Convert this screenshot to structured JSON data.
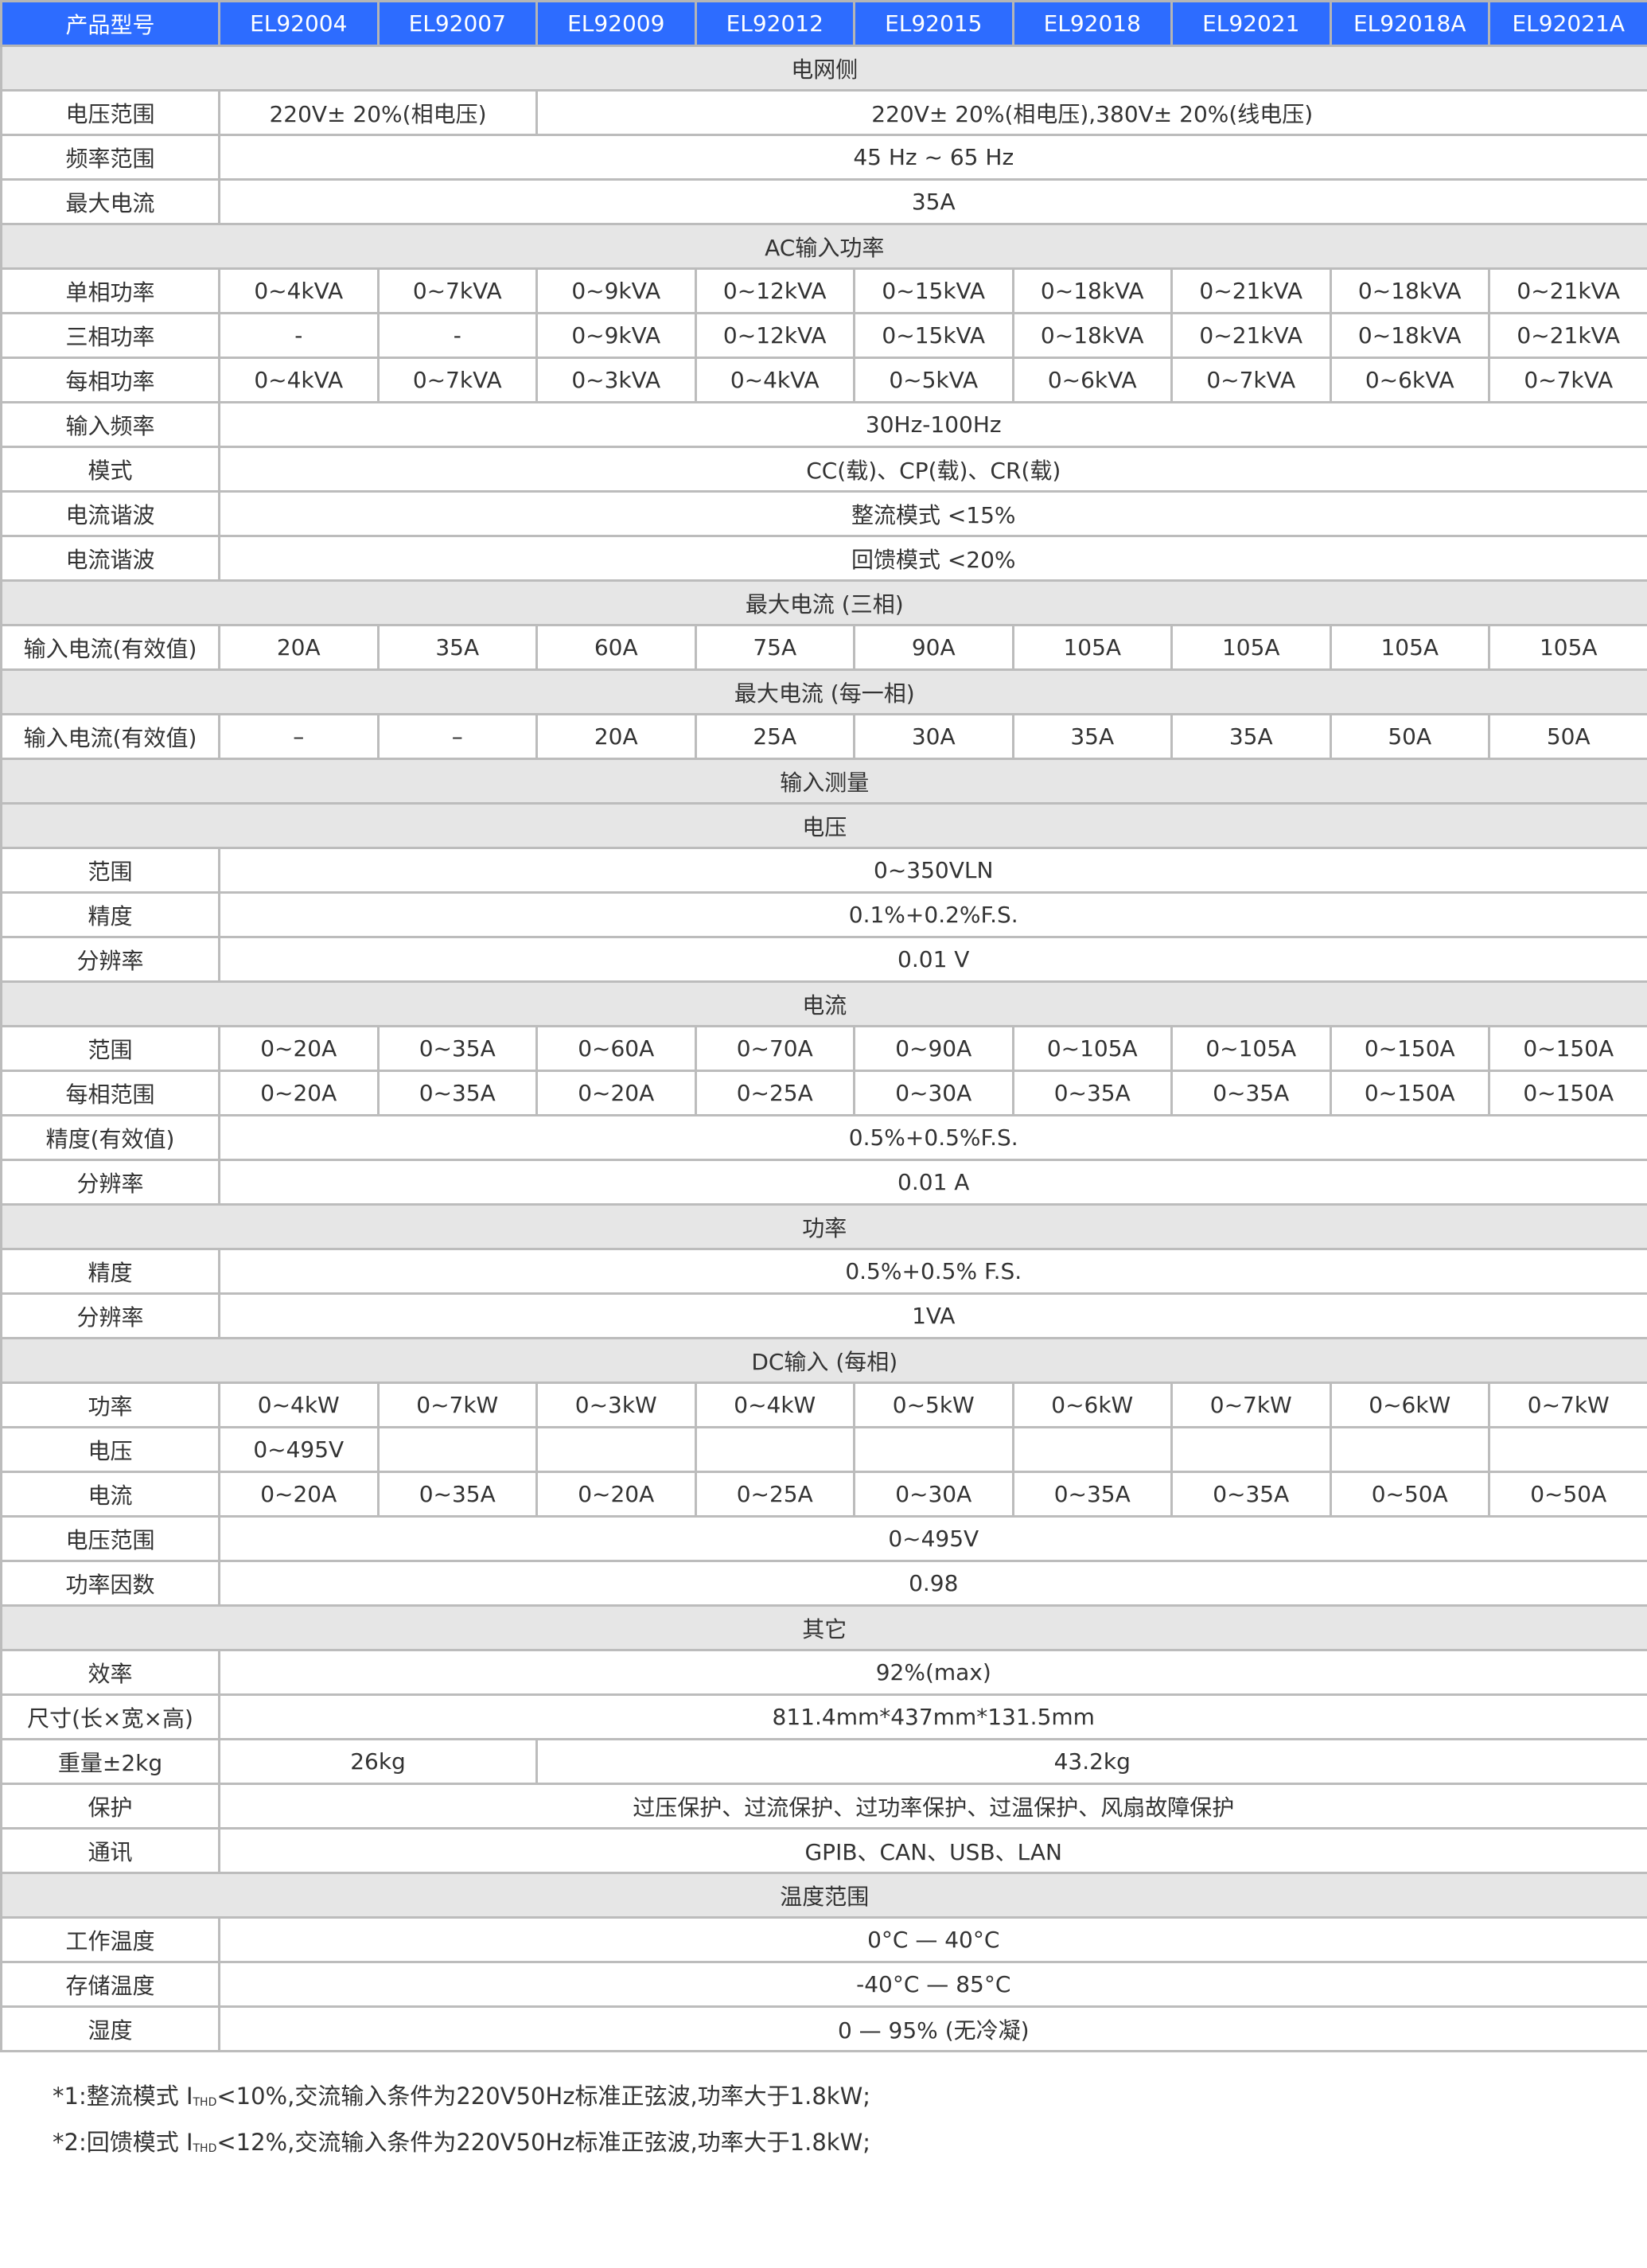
{
  "header": [
    "产品型号",
    "EL92004",
    "EL92007",
    "EL92009",
    "EL92012",
    "EL92015",
    "EL92018",
    "EL92021",
    "EL92018A",
    "EL92021A"
  ],
  "rows": [
    {
      "section": "电网侧"
    },
    {
      "label": "电压范围",
      "cells": [
        {
          "t": "220V± 20%(相电压)",
          "s": 2
        },
        {
          "t": "220V± 20%(相电压),380V± 20%(线电压)",
          "s": 7
        }
      ]
    },
    {
      "label": "频率范围",
      "cells": [
        {
          "t": "45 Hz ~ 65 Hz",
          "s": 9
        }
      ]
    },
    {
      "label": "最大电流",
      "cells": [
        {
          "t": "35A",
          "s": 9
        }
      ]
    },
    {
      "section": "AC输入功率"
    },
    {
      "label": "单相功率",
      "cells": [
        {
          "t": "0~4kVA"
        },
        {
          "t": "0~7kVA"
        },
        {
          "t": "0~9kVA"
        },
        {
          "t": "0~12kVA"
        },
        {
          "t": "0~15kVA"
        },
        {
          "t": "0~18kVA"
        },
        {
          "t": "0~21kVA"
        },
        {
          "t": "0~18kVA"
        },
        {
          "t": "0~21kVA"
        }
      ]
    },
    {
      "label": "三相功率",
      "cells": [
        {
          "t": "-"
        },
        {
          "t": "-"
        },
        {
          "t": "0~9kVA"
        },
        {
          "t": "0~12kVA"
        },
        {
          "t": "0~15kVA"
        },
        {
          "t": "0~18kVA"
        },
        {
          "t": "0~21kVA"
        },
        {
          "t": "0~18kVA"
        },
        {
          "t": "0~21kVA"
        }
      ]
    },
    {
      "label": "每相功率",
      "cells": [
        {
          "t": "0~4kVA"
        },
        {
          "t": "0~7kVA"
        },
        {
          "t": "0~3kVA"
        },
        {
          "t": "0~4kVA"
        },
        {
          "t": "0~5kVA"
        },
        {
          "t": "0~6kVA"
        },
        {
          "t": "0~7kVA"
        },
        {
          "t": "0~6kVA"
        },
        {
          "t": "0~7kVA"
        }
      ]
    },
    {
      "label": "输入频率",
      "cells": [
        {
          "t": "30Hz-100Hz",
          "s": 9
        }
      ]
    },
    {
      "label": "模式",
      "cells": [
        {
          "t": "CC(载)、CP(载)、CR(载)",
          "s": 9
        }
      ]
    },
    {
      "label": "电流谐波",
      "cells": [
        {
          "t": "整流模式 <15%",
          "s": 9
        }
      ]
    },
    {
      "label": "电流谐波",
      "cells": [
        {
          "t": "回馈模式 <20%",
          "s": 9
        }
      ]
    },
    {
      "section": "最大电流 (三相)"
    },
    {
      "label": "输入电流(有效值)",
      "cells": [
        {
          "t": "20A"
        },
        {
          "t": "35A"
        },
        {
          "t": "60A"
        },
        {
          "t": "75A"
        },
        {
          "t": "90A"
        },
        {
          "t": "105A"
        },
        {
          "t": "105A"
        },
        {
          "t": "105A"
        },
        {
          "t": "105A"
        }
      ]
    },
    {
      "section": "最大电流 (每一相)"
    },
    {
      "label": "输入电流(有效值)",
      "cells": [
        {
          "t": "–"
        },
        {
          "t": "–"
        },
        {
          "t": "20A"
        },
        {
          "t": "25A"
        },
        {
          "t": "30A"
        },
        {
          "t": "35A"
        },
        {
          "t": "35A"
        },
        {
          "t": "50A"
        },
        {
          "t": "50A"
        }
      ]
    },
    {
      "section": "输入测量"
    },
    {
      "section": "电压"
    },
    {
      "label": "范围",
      "cells": [
        {
          "t": "0~350VLN",
          "s": 9
        }
      ]
    },
    {
      "label": "精度",
      "cells": [
        {
          "t": "0.1%+0.2%F.S.",
          "s": 9
        }
      ]
    },
    {
      "label": "分辨率",
      "cells": [
        {
          "t": "0.01 V",
          "s": 9
        }
      ]
    },
    {
      "section": "电流"
    },
    {
      "label": "范围",
      "cells": [
        {
          "t": "0~20A"
        },
        {
          "t": "0~35A"
        },
        {
          "t": "0~60A"
        },
        {
          "t": "0~70A"
        },
        {
          "t": "0~90A"
        },
        {
          "t": "0~105A"
        },
        {
          "t": "0~105A"
        },
        {
          "t": "0~150A"
        },
        {
          "t": "0~150A"
        }
      ]
    },
    {
      "label": "每相范围",
      "cells": [
        {
          "t": "0~20A"
        },
        {
          "t": "0~35A"
        },
        {
          "t": "0~20A"
        },
        {
          "t": "0~25A"
        },
        {
          "t": "0~30A"
        },
        {
          "t": "0~35A"
        },
        {
          "t": "0~35A"
        },
        {
          "t": "0~150A"
        },
        {
          "t": "0~150A"
        }
      ]
    },
    {
      "label": "精度(有效值)",
      "cells": [
        {
          "t": "0.5%+0.5%F.S.",
          "s": 9
        }
      ]
    },
    {
      "label": "分辨率",
      "cells": [
        {
          "t": "0.01 A",
          "s": 9
        }
      ]
    },
    {
      "section": "功率"
    },
    {
      "label": "精度",
      "cells": [
        {
          "t": "0.5%+0.5% F.S.",
          "s": 9
        }
      ]
    },
    {
      "label": "分辨率",
      "cells": [
        {
          "t": "1VA",
          "s": 9
        }
      ]
    },
    {
      "section": "DC输入 (每相)"
    },
    {
      "label": "功率",
      "cells": [
        {
          "t": "0~4kW"
        },
        {
          "t": "0~7kW"
        },
        {
          "t": "0~3kW"
        },
        {
          "t": "0~4kW"
        },
        {
          "t": "0~5kW"
        },
        {
          "t": "0~6kW"
        },
        {
          "t": "0~7kW"
        },
        {
          "t": "0~6kW"
        },
        {
          "t": "0~7kW"
        }
      ]
    },
    {
      "label": "电压",
      "cells": [
        {
          "t": "0~495V"
        },
        {
          "t": ""
        },
        {
          "t": ""
        },
        {
          "t": ""
        },
        {
          "t": ""
        },
        {
          "t": ""
        },
        {
          "t": ""
        },
        {
          "t": ""
        },
        {
          "t": ""
        }
      ]
    },
    {
      "label": "电流",
      "cells": [
        {
          "t": "0~20A"
        },
        {
          "t": "0~35A"
        },
        {
          "t": "0~20A"
        },
        {
          "t": "0~25A"
        },
        {
          "t": "0~30A"
        },
        {
          "t": "0~35A"
        },
        {
          "t": "0~35A"
        },
        {
          "t": "0~50A"
        },
        {
          "t": "0~50A"
        }
      ]
    },
    {
      "label": "电压范围",
      "cells": [
        {
          "t": "0~495V",
          "s": 9
        }
      ]
    },
    {
      "label": "功率因数",
      "cells": [
        {
          "t": "0.98",
          "s": 9
        }
      ]
    },
    {
      "section": "其它"
    },
    {
      "label": "效率",
      "cells": [
        {
          "t": "92%(max)",
          "s": 9
        }
      ]
    },
    {
      "label": "尺寸(长×宽×高)",
      "cells": [
        {
          "t": "811.4mm*437mm*131.5mm",
          "s": 9
        }
      ]
    },
    {
      "label": "重量±2kg",
      "cells": [
        {
          "t": "26kg",
          "s": 2
        },
        {
          "t": "43.2kg",
          "s": 7
        }
      ]
    },
    {
      "label": "保护",
      "cells": [
        {
          "t": "过压保护、过流保护、过功率保护、过温保护、风扇故障保护",
          "s": 9
        }
      ]
    },
    {
      "label": "通讯",
      "cells": [
        {
          "t": "GPIB、CAN、USB、LAN",
          "s": 9
        }
      ]
    },
    {
      "section": "温度范围"
    },
    {
      "label": "工作温度",
      "cells": [
        {
          "t": "0°C — 40°C",
          "s": 9
        }
      ]
    },
    {
      "label": "存储温度",
      "cells": [
        {
          "t": "-40°C — 85°C",
          "s": 9
        }
      ]
    },
    {
      "label": "湿度",
      "cells": [
        {
          "t": "0 — 95% (无冷凝)",
          "s": 9
        }
      ]
    }
  ],
  "notes": [
    {
      "pre": "*1:整流模式 I",
      "sub": "THD",
      "post": "<10%,交流输入条件为220V50Hz标准正弦波,功率大于1.8kW;"
    },
    {
      "pre": "*2:回馈模式 I",
      "sub": "THD",
      "post": "<12%,交流输入条件为220V50Hz标准正弦波,功率大于1.8kW;"
    }
  ],
  "colors": {
    "header_bg": "#2d6cff",
    "section_bg": "#e6e6e6",
    "grid": "#bcbcbc"
  }
}
